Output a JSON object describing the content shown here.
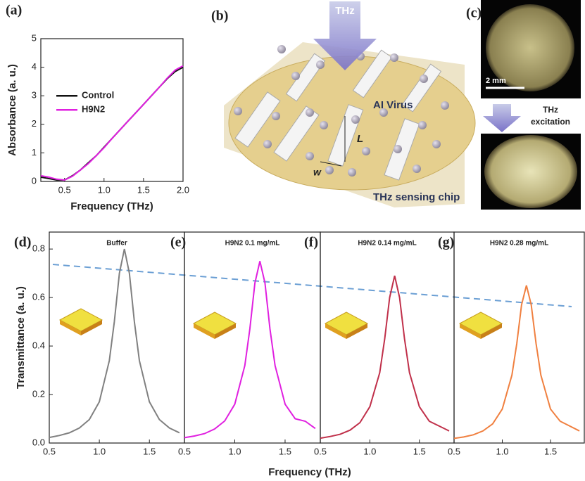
{
  "panel_labels": [
    "(a)",
    "(b)",
    "(c)",
    "(d)",
    "(e)",
    "(f)",
    "(g)"
  ],
  "schematic": {
    "beam": "THz",
    "virus": "AI Virus",
    "length": "L",
    "width": "w",
    "chip": "THz sensing chip"
  },
  "photos": {
    "scale_bar": "2 mm",
    "arrow_label": "THz excitation"
  },
  "bottom_xlabel": "Frequency (THz)",
  "chart_data": [
    {
      "type": "line",
      "xlabel": "Frequency (THz)",
      "ylabel": "Absorbance (a. u.)",
      "x": [
        0.2,
        0.3,
        0.4,
        0.5,
        0.6,
        0.7,
        0.8,
        0.9,
        1.0,
        1.1,
        1.2,
        1.3,
        1.4,
        1.5,
        1.6,
        1.7,
        1.8,
        1.9,
        2.0
      ],
      "series": [
        {
          "name": "Control",
          "color": "#111111",
          "values": [
            0.15,
            0.1,
            0.05,
            0.05,
            0.2,
            0.4,
            0.65,
            0.9,
            1.2,
            1.5,
            1.8,
            2.1,
            2.4,
            2.7,
            3.0,
            3.3,
            3.6,
            3.85,
            4.0
          ]
        },
        {
          "name": "H9N2",
          "color": "#e020e0",
          "values": [
            0.2,
            0.15,
            0.08,
            0.05,
            0.18,
            0.4,
            0.62,
            0.9,
            1.18,
            1.5,
            1.8,
            2.1,
            2.4,
            2.7,
            3.0,
            3.3,
            3.62,
            3.9,
            4.05
          ]
        }
      ],
      "xlim": [
        0.2,
        2.0
      ],
      "xticks": [
        0.5,
        {
          "value": 1,
          "label": "1.0"
        },
        1.5,
        {
          "value": 2,
          "label": "2.0"
        }
      ],
      "ylim": [
        0,
        5
      ],
      "yticks": [
        0,
        1,
        2,
        3,
        4,
        5
      ],
      "legend": "center-left"
    },
    {
      "type": "line",
      "title": "Buffer",
      "ylabel": "Transmittance (a. u.)",
      "color": "#808080",
      "x": [
        0.5,
        0.6,
        0.7,
        0.8,
        0.9,
        1.0,
        1.1,
        1.15,
        1.2,
        1.25,
        1.3,
        1.35,
        1.4,
        1.5,
        1.6,
        1.7,
        1.8
      ],
      "values": [
        0.023,
        0.031,
        0.042,
        0.062,
        0.097,
        0.17,
        0.34,
        0.5,
        0.7,
        0.8,
        0.7,
        0.5,
        0.34,
        0.17,
        0.097,
        0.062,
        0.042
      ],
      "xlim": [
        0.5,
        1.85
      ],
      "xticks": [
        0.5,
        {
          "value": 1,
          "label": "1.0"
        },
        1.5
      ],
      "ylim": [
        0,
        0.87
      ],
      "yticks": [
        {
          "value": 0,
          "label": "0.0"
        },
        0.2,
        0.4,
        0.6,
        0.8
      ]
    },
    {
      "type": "line",
      "title": "H9N2 0.1 mg/mL",
      "color": "#e020e0",
      "x": [
        0.5,
        0.6,
        0.7,
        0.8,
        0.9,
        1.0,
        1.1,
        1.15,
        1.2,
        1.25,
        1.3,
        1.35,
        1.4,
        1.5,
        1.6,
        1.7,
        1.8
      ],
      "values": [
        0.022,
        0.029,
        0.039,
        0.058,
        0.091,
        0.16,
        0.32,
        0.47,
        0.66,
        0.75,
        0.66,
        0.47,
        0.32,
        0.16,
        0.1,
        0.09,
        0.06
      ],
      "xlim": [
        0.5,
        1.85
      ],
      "xticks": [
        0.5,
        {
          "value": 1,
          "label": "1.0"
        },
        1.5
      ],
      "ylim": [
        0,
        0.87
      ]
    },
    {
      "type": "line",
      "title": "H9N2 0.14 mg/mL",
      "color": "#c0304a",
      "x": [
        0.5,
        0.6,
        0.7,
        0.8,
        0.9,
        1.0,
        1.1,
        1.15,
        1.2,
        1.25,
        1.3,
        1.35,
        1.4,
        1.5,
        1.6,
        1.7,
        1.8
      ],
      "values": [
        0.02,
        0.027,
        0.036,
        0.053,
        0.084,
        0.15,
        0.29,
        0.43,
        0.6,
        0.69,
        0.6,
        0.43,
        0.29,
        0.15,
        0.09,
        0.07,
        0.05
      ],
      "xlim": [
        0.5,
        1.85
      ],
      "xticks": [
        0.5,
        {
          "value": 1,
          "label": "1.0"
        },
        1.5
      ],
      "ylim": [
        0,
        0.87
      ]
    },
    {
      "type": "line",
      "title": "H9N2 0.28 mg/mL",
      "color": "#f08040",
      "x": [
        0.5,
        0.6,
        0.7,
        0.8,
        0.9,
        1.0,
        1.1,
        1.15,
        1.2,
        1.25,
        1.3,
        1.35,
        1.4,
        1.5,
        1.6,
        1.7,
        1.8
      ],
      "values": [
        0.019,
        0.025,
        0.034,
        0.05,
        0.079,
        0.14,
        0.28,
        0.41,
        0.57,
        0.65,
        0.57,
        0.41,
        0.28,
        0.14,
        0.09,
        0.07,
        0.05
      ],
      "xlim": [
        0.5,
        1.85
      ],
      "xticks": [
        0.5,
        {
          "value": 1,
          "label": "1.0"
        },
        1.5
      ],
      "ylim": [
        0,
        0.87
      ]
    }
  ]
}
